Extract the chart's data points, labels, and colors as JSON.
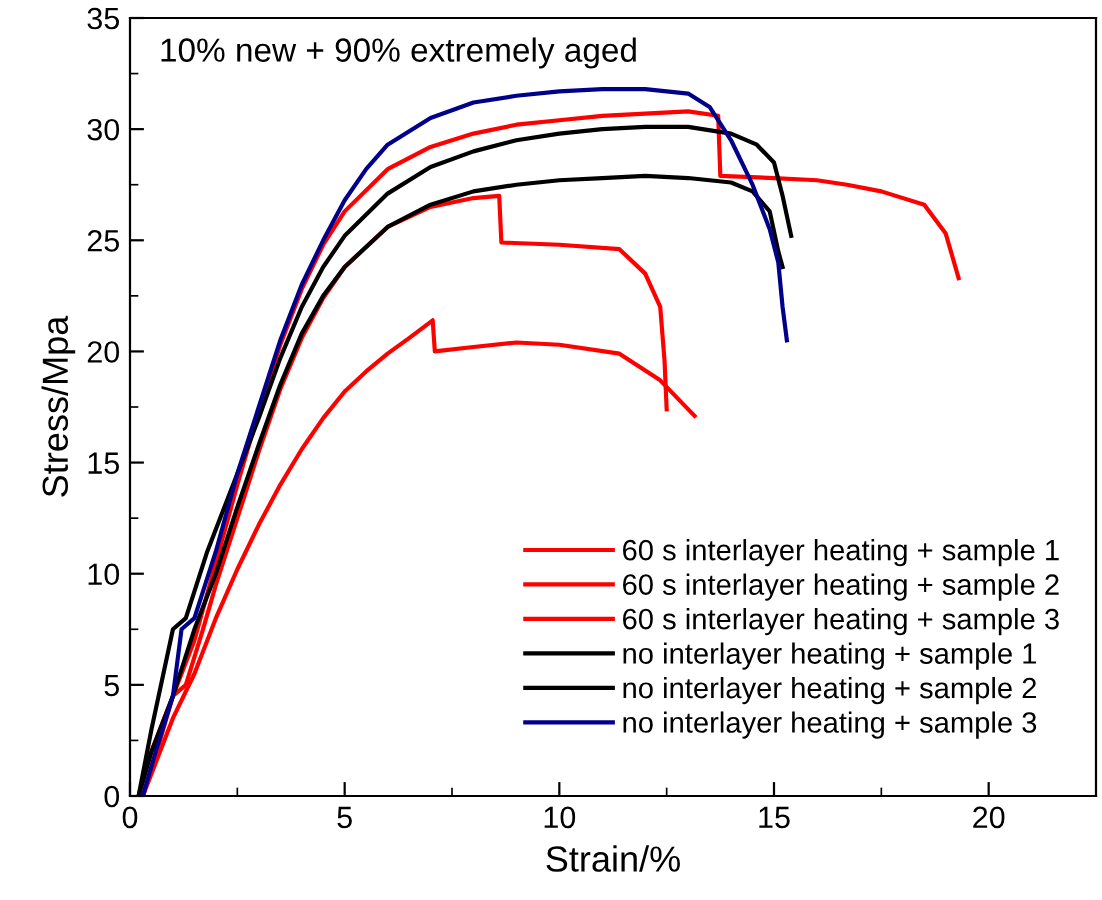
{
  "chart_data": {
    "type": "line",
    "xlabel": "Strain/%",
    "ylabel": "Stress/Mpa",
    "annotations": [
      "10% new + 90% extremely aged"
    ],
    "xlim": [
      0,
      22.5
    ],
    "ylim": [
      0,
      35
    ],
    "xticks": [
      0,
      5,
      10,
      15,
      20
    ],
    "yticks": [
      0,
      5,
      10,
      15,
      20,
      25,
      30,
      35
    ],
    "grid": false,
    "legend": "bottom right",
    "marker": "none",
    "line_style": "solid",
    "series": [
      {
        "name": "60 s interlayer heating + sample 1",
        "color": "#ff0000",
        "x": [
          0.2,
          0.5,
          1,
          1.5,
          2,
          2.5,
          3,
          3.5,
          4,
          4.5,
          5,
          6,
          7,
          8,
          9,
          10,
          11,
          12,
          13,
          13.7,
          13.75,
          15,
          16,
          16.7,
          17.5,
          18.5,
          19,
          19.3
        ],
        "values": [
          0,
          2,
          4.5,
          7,
          10.5,
          14,
          17.3,
          20.3,
          22.8,
          24.8,
          26.3,
          28.2,
          29.2,
          29.8,
          30.2,
          30.4,
          30.6,
          30.7,
          30.8,
          30.6,
          27.9,
          27.8,
          27.7,
          27.5,
          27.2,
          26.6,
          25.3,
          23.3
        ]
      },
      {
        "name": "60 s interlayer heating + sample 2",
        "color": "#ff0000",
        "x": [
          0.3,
          0.7,
          1,
          1.3,
          1.7,
          2,
          2.5,
          3,
          3.5,
          4,
          4.5,
          5,
          6,
          7,
          8,
          8.6,
          8.65,
          10,
          11.4,
          12,
          12.35,
          12.45,
          12.5
        ],
        "values": [
          0,
          2.5,
          4.5,
          5,
          7.5,
          9.5,
          12.5,
          15.5,
          18.3,
          20.6,
          22.4,
          23.8,
          25.6,
          26.5,
          26.9,
          27.0,
          24.9,
          24.8,
          24.6,
          23.5,
          22,
          19.6,
          17.4
        ]
      },
      {
        "name": "60 s interlayer heating + sample 3",
        "color": "#ff0000",
        "x": [
          0.3,
          0.7,
          1,
          1.5,
          2,
          2.5,
          3,
          3.5,
          4,
          4.5,
          5,
          5.5,
          6,
          6.5,
          7.05,
          7.1,
          8,
          9,
          10,
          11.4,
          12.35,
          13.15
        ],
        "values": [
          0,
          2,
          3.5,
          5.5,
          8,
          10.2,
          12.2,
          14,
          15.6,
          17,
          18.2,
          19.1,
          19.9,
          20.6,
          21.4,
          20.0,
          20.2,
          20.4,
          20.3,
          19.9,
          18.7,
          17.1
        ]
      },
      {
        "name": "no interlayer heating + sample 1",
        "color": "#000000",
        "x": [
          0.2,
          0.5,
          1,
          1.3,
          1.8,
          2.5,
          3,
          3.5,
          4,
          4.5,
          5,
          6,
          7,
          8,
          9,
          10,
          11,
          12,
          13,
          14,
          14.6,
          15,
          15.2,
          15.4
        ],
        "values": [
          0,
          3,
          7.5,
          8,
          11,
          14.5,
          17,
          19.7,
          22,
          23.8,
          25.2,
          27.1,
          28.3,
          29,
          29.5,
          29.8,
          30,
          30.1,
          30.1,
          29.8,
          29.3,
          28.5,
          27,
          25.2
        ]
      },
      {
        "name": "no interlayer heating + sample 2",
        "color": "#000000",
        "x": [
          0.2,
          0.5,
          1,
          1.5,
          2,
          2.5,
          3,
          3.5,
          4,
          4.5,
          5,
          6,
          7,
          8,
          9,
          10,
          11,
          12,
          13,
          14,
          14.5,
          14.9,
          15.1,
          15.2
        ],
        "values": [
          0,
          2,
          4.5,
          7.5,
          10,
          13,
          15.8,
          18.5,
          20.8,
          22.5,
          23.8,
          25.6,
          26.6,
          27.2,
          27.5,
          27.7,
          27.8,
          27.9,
          27.8,
          27.6,
          27.2,
          26.3,
          24.5,
          23.8
        ]
      },
      {
        "name": "no interlayer heating + sample 3",
        "color": "#00008b",
        "x": [
          0.3,
          0.6,
          1,
          1.2,
          1.5,
          2,
          2.5,
          3,
          3.5,
          4,
          4.5,
          5,
          5.5,
          6,
          7,
          8,
          9,
          10,
          11,
          12,
          13,
          13.5,
          14,
          14.5,
          14.9,
          15.1,
          15.2,
          15.3
        ],
        "values": [
          0,
          2,
          4.5,
          7.5,
          8,
          11,
          14.5,
          17.5,
          20.5,
          23,
          25,
          26.8,
          28.2,
          29.3,
          30.5,
          31.2,
          31.5,
          31.7,
          31.8,
          31.8,
          31.6,
          31,
          29.5,
          27.5,
          25.5,
          24,
          22,
          20.5
        ]
      }
    ]
  }
}
